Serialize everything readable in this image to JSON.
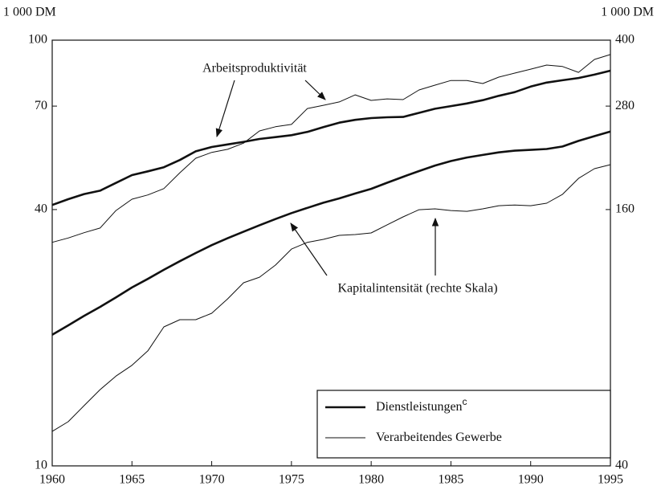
{
  "chart_data": {
    "type": "line",
    "y_label": "1 000 DM",
    "y2_label": "1 000 DM",
    "log_scale": true,
    "x": [
      1960,
      1961,
      1962,
      1963,
      1964,
      1965,
      1966,
      1967,
      1968,
      1969,
      1970,
      1971,
      1972,
      1973,
      1974,
      1975,
      1976,
      1977,
      1978,
      1979,
      1980,
      1981,
      1982,
      1983,
      1984,
      1985,
      1986,
      1987,
      1988,
      1989,
      1990,
      1991,
      1992,
      1993,
      1994,
      1995
    ],
    "xlim": [
      1960,
      1995
    ],
    "xticks": [
      1960,
      1965,
      1970,
      1975,
      1980,
      1985,
      1990,
      1995
    ],
    "ylim": [
      10,
      100
    ],
    "yticks": [
      10,
      40,
      70,
      100
    ],
    "y2lim": [
      40,
      400
    ],
    "y2ticks": [
      40,
      160,
      280,
      400
    ],
    "legend": [
      {
        "name": "Dienstleistungen",
        "sup": "c",
        "width": 2.6,
        "color": "#111111"
      },
      {
        "name": "Verarbeitendes Gewerbe",
        "width": 1,
        "color": "#111111"
      }
    ],
    "series": [
      {
        "legend": 0,
        "axis": "y",
        "values": [
          41,
          42.3,
          43.5,
          44.3,
          46.2,
          48.2,
          49.2,
          50.3,
          52.3,
          54.8,
          56.1,
          56.9,
          57.7,
          58.6,
          59.2,
          59.8,
          60.9,
          62.5,
          64,
          65,
          65.6,
          65.9,
          66,
          67.5,
          69,
          70,
          71,
          72.3,
          74,
          75.5,
          77.8,
          79.5,
          80.5,
          81.5,
          83,
          84.8
        ]
      },
      {
        "legend": 1,
        "axis": "y",
        "values": [
          33.5,
          34.3,
          35.3,
          36.2,
          39.8,
          42.3,
          43.3,
          44.8,
          48.8,
          52.8,
          54.5,
          55.4,
          57.3,
          61.2,
          62.6,
          63.4,
          69.1,
          70.3,
          71.6,
          74.4,
          72.2,
          72.8,
          72.5,
          76.4,
          78.4,
          80.4,
          80.4,
          79.1,
          81.9,
          83.7,
          85.5,
          87.4,
          86.7,
          84,
          90.1,
          92.5
        ]
      },
      {
        "legend": 0,
        "axis": "y2",
        "values": [
          81.3,
          85.5,
          90,
          94.5,
          99.5,
          105,
          110,
          115.5,
          121,
          126.5,
          132,
          137,
          142,
          147,
          152,
          157,
          161.5,
          166,
          170,
          174.5,
          179,
          185,
          191,
          197,
          203,
          208,
          212,
          215,
          218,
          220,
          221,
          222,
          225,
          232,
          238,
          244
        ]
      },
      {
        "legend": 1,
        "axis": "y2",
        "values": [
          48.2,
          50.8,
          55.4,
          60.4,
          65,
          68.9,
          74.5,
          84.8,
          88.2,
          88.2,
          91.3,
          98.7,
          107.7,
          111,
          118.5,
          129.2,
          134,
          136.2,
          139.2,
          139.8,
          141,
          147.3,
          153.8,
          159.9,
          160.6,
          159.2,
          158.5,
          160.6,
          163.4,
          164,
          163.4,
          165.6,
          173.8,
          189.4,
          199.6,
          204
        ]
      }
    ],
    "annotations": [
      "Arbeitsproduktivität",
      "Kapitalintensität (rechte Skala)"
    ]
  }
}
